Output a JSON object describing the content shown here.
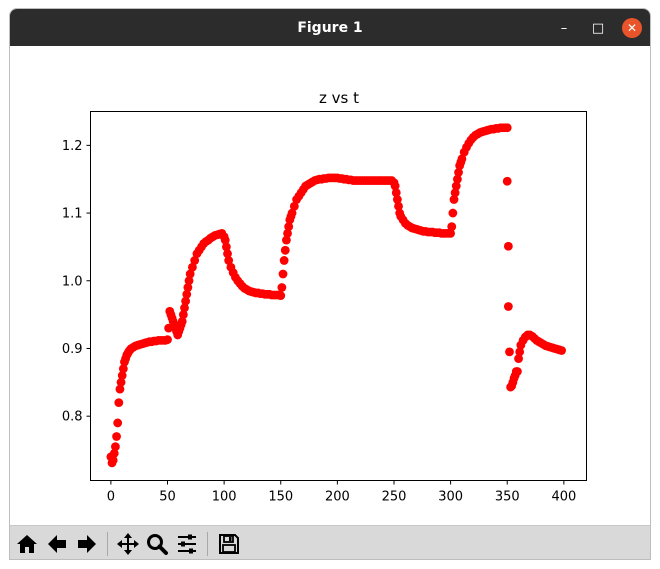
{
  "window": {
    "title": "Figure 1",
    "minimize_glyph": "–",
    "maximize_glyph": "□",
    "close_glyph": "✕",
    "close_color": "#e9542b",
    "titlebar_color": "#2c2c2c"
  },
  "toolbar": {
    "buttons": [
      {
        "name": "home-button",
        "icon": "home-icon"
      },
      {
        "name": "back-button",
        "icon": "arrow-left-icon"
      },
      {
        "name": "forward-button",
        "icon": "arrow-right-icon"
      },
      {
        "name": "pan-button",
        "icon": "move-icon"
      },
      {
        "name": "zoom-button",
        "icon": "magnifier-icon"
      },
      {
        "name": "configure-subplots-button",
        "icon": "sliders-icon"
      },
      {
        "name": "save-button",
        "icon": "floppy-disk-icon"
      }
    ]
  },
  "chart_data": {
    "type": "scatter",
    "title": "z vs t",
    "xlabel": "",
    "ylabel": "",
    "xlim": [
      -18,
      420
    ],
    "ylim": [
      0.705,
      1.25
    ],
    "xticks": [
      0,
      50,
      100,
      150,
      200,
      250,
      300,
      350,
      400
    ],
    "yticks": [
      0.8,
      0.9,
      1.0,
      1.1,
      1.2
    ],
    "ytick_labels": [
      "0.8",
      "0.9",
      "1.0",
      "1.1",
      "1.2"
    ],
    "grid": false,
    "marker_color": "#ff0000",
    "series": [
      {
        "points": [
          [
            0,
            0.74
          ],
          [
            1,
            0.731
          ],
          [
            2,
            0.735
          ],
          [
            3,
            0.745
          ],
          [
            4,
            0.755
          ],
          [
            5,
            0.77
          ],
          [
            6,
            0.79
          ],
          [
            7,
            0.82
          ],
          [
            8,
            0.84
          ],
          [
            9,
            0.85
          ],
          [
            10,
            0.86
          ],
          [
            11,
            0.87
          ],
          [
            12,
            0.88
          ],
          [
            13,
            0.885
          ],
          [
            14,
            0.89
          ],
          [
            15,
            0.893
          ],
          [
            16,
            0.896
          ],
          [
            17,
            0.898
          ],
          [
            18,
            0.9
          ],
          [
            20,
            0.902
          ],
          [
            22,
            0.904
          ],
          [
            24,
            0.905
          ],
          [
            26,
            0.906
          ],
          [
            28,
            0.907
          ],
          [
            30,
            0.908
          ],
          [
            32,
            0.909
          ],
          [
            34,
            0.91
          ],
          [
            36,
            0.91
          ],
          [
            38,
            0.911
          ],
          [
            40,
            0.911
          ],
          [
            42,
            0.912
          ],
          [
            44,
            0.912
          ],
          [
            46,
            0.912
          ],
          [
            48,
            0.912
          ],
          [
            50,
            0.913
          ],
          [
            51,
            0.93
          ],
          [
            52,
            0.955
          ],
          [
            53,
            0.95
          ],
          [
            54,
            0.945
          ],
          [
            55,
            0.94
          ],
          [
            56,
            0.935
          ],
          [
            57,
            0.93
          ],
          [
            58,
            0.925
          ],
          [
            59,
            0.92
          ],
          [
            60,
            0.925
          ],
          [
            61,
            0.93
          ],
          [
            62,
            0.935
          ],
          [
            63,
            0.94
          ],
          [
            64,
            0.95
          ],
          [
            65,
            0.96
          ],
          [
            66,
            0.97
          ],
          [
            67,
            0.98
          ],
          [
            68,
            0.99
          ],
          [
            69,
            1.0
          ],
          [
            70,
            1.01
          ],
          [
            72,
            1.02
          ],
          [
            74,
            1.03
          ],
          [
            76,
            1.04
          ],
          [
            78,
            1.045
          ],
          [
            80,
            1.05
          ],
          [
            82,
            1.055
          ],
          [
            84,
            1.058
          ],
          [
            86,
            1.06
          ],
          [
            88,
            1.063
          ],
          [
            90,
            1.065
          ],
          [
            92,
            1.067
          ],
          [
            94,
            1.068
          ],
          [
            96,
            1.069
          ],
          [
            98,
            1.07
          ],
          [
            100,
            1.065
          ],
          [
            101,
            1.06
          ],
          [
            102,
            1.05
          ],
          [
            103,
            1.04
          ],
          [
            104,
            1.03
          ],
          [
            106,
            1.02
          ],
          [
            108,
            1.012
          ],
          [
            110,
            1.005
          ],
          [
            112,
            1.0
          ],
          [
            114,
            0.996
          ],
          [
            116,
            0.992
          ],
          [
            118,
            0.989
          ],
          [
            120,
            0.987
          ],
          [
            122,
            0.985
          ],
          [
            124,
            0.984
          ],
          [
            126,
            0.983
          ],
          [
            128,
            0.982
          ],
          [
            130,
            0.982
          ],
          [
            132,
            0.981
          ],
          [
            134,
            0.981
          ],
          [
            136,
            0.98
          ],
          [
            138,
            0.98
          ],
          [
            140,
            0.98
          ],
          [
            142,
            0.979
          ],
          [
            144,
            0.979
          ],
          [
            146,
            0.979
          ],
          [
            148,
            0.979
          ],
          [
            150,
            0.978
          ],
          [
            151,
            0.99
          ],
          [
            152,
            1.01
          ],
          [
            153,
            1.03
          ],
          [
            154,
            1.045
          ],
          [
            155,
            1.06
          ],
          [
            156,
            1.07
          ],
          [
            157,
            1.08
          ],
          [
            158,
            1.09
          ],
          [
            159,
            1.095
          ],
          [
            160,
            1.1
          ],
          [
            162,
            1.11
          ],
          [
            164,
            1.12
          ],
          [
            166,
            1.125
          ],
          [
            168,
            1.13
          ],
          [
            170,
            1.135
          ],
          [
            172,
            1.14
          ],
          [
            174,
            1.142
          ],
          [
            176,
            1.144
          ],
          [
            178,
            1.146
          ],
          [
            180,
            1.148
          ],
          [
            182,
            1.149
          ],
          [
            184,
            1.15
          ],
          [
            186,
            1.15
          ],
          [
            188,
            1.151
          ],
          [
            190,
            1.151
          ],
          [
            192,
            1.152
          ],
          [
            194,
            1.152
          ],
          [
            196,
            1.152
          ],
          [
            198,
            1.152
          ],
          [
            200,
            1.152
          ],
          [
            202,
            1.151
          ],
          [
            204,
            1.151
          ],
          [
            206,
            1.15
          ],
          [
            208,
            1.15
          ],
          [
            210,
            1.149
          ],
          [
            212,
            1.149
          ],
          [
            214,
            1.148
          ],
          [
            216,
            1.148
          ],
          [
            218,
            1.148
          ],
          [
            220,
            1.148
          ],
          [
            222,
            1.148
          ],
          [
            224,
            1.148
          ],
          [
            226,
            1.148
          ],
          [
            228,
            1.148
          ],
          [
            230,
            1.148
          ],
          [
            232,
            1.148
          ],
          [
            234,
            1.148
          ],
          [
            236,
            1.148
          ],
          [
            238,
            1.148
          ],
          [
            240,
            1.148
          ],
          [
            242,
            1.148
          ],
          [
            244,
            1.148
          ],
          [
            246,
            1.148
          ],
          [
            248,
            1.148
          ],
          [
            250,
            1.145
          ],
          [
            251,
            1.14
          ],
          [
            252,
            1.13
          ],
          [
            253,
            1.12
          ],
          [
            254,
            1.11
          ],
          [
            255,
            1.1
          ],
          [
            256,
            1.095
          ],
          [
            258,
            1.09
          ],
          [
            260,
            1.085
          ],
          [
            262,
            1.082
          ],
          [
            264,
            1.08
          ],
          [
            266,
            1.078
          ],
          [
            268,
            1.077
          ],
          [
            270,
            1.076
          ],
          [
            272,
            1.075
          ],
          [
            274,
            1.074
          ],
          [
            276,
            1.073
          ],
          [
            278,
            1.073
          ],
          [
            280,
            1.072
          ],
          [
            282,
            1.072
          ],
          [
            284,
            1.072
          ],
          [
            286,
            1.071
          ],
          [
            288,
            1.071
          ],
          [
            290,
            1.071
          ],
          [
            292,
            1.07
          ],
          [
            294,
            1.07
          ],
          [
            296,
            1.07
          ],
          [
            298,
            1.07
          ],
          [
            300,
            1.07
          ],
          [
            301,
            1.08
          ],
          [
            302,
            1.1
          ],
          [
            303,
            1.12
          ],
          [
            304,
            1.13
          ],
          [
            305,
            1.14
          ],
          [
            306,
            1.15
          ],
          [
            307,
            1.16
          ],
          [
            308,
            1.17
          ],
          [
            309,
            1.175
          ],
          [
            310,
            1.18
          ],
          [
            312,
            1.19
          ],
          [
            314,
            1.197
          ],
          [
            316,
            1.203
          ],
          [
            318,
            1.208
          ],
          [
            320,
            1.212
          ],
          [
            322,
            1.215
          ],
          [
            324,
            1.217
          ],
          [
            326,
            1.219
          ],
          [
            328,
            1.22
          ],
          [
            330,
            1.221
          ],
          [
            332,
            1.222
          ],
          [
            334,
            1.223
          ],
          [
            336,
            1.224
          ],
          [
            338,
            1.224
          ],
          [
            340,
            1.225
          ],
          [
            342,
            1.225
          ],
          [
            344,
            1.226
          ],
          [
            346,
            1.226
          ],
          [
            348,
            1.226
          ],
          [
            350,
            1.226
          ],
          [
            350,
            1.147
          ],
          [
            351,
            1.051
          ],
          [
            351,
            0.962
          ],
          [
            352,
            0.895
          ],
          [
            353,
            0.843
          ],
          [
            354,
            0.845
          ],
          [
            355,
            0.85
          ],
          [
            356,
            0.856
          ],
          [
            357,
            0.86
          ],
          [
            358,
            0.866
          ],
          [
            359,
            0.866
          ],
          [
            360,
            0.885
          ],
          [
            361,
            0.895
          ],
          [
            362,
            0.905
          ],
          [
            364,
            0.912
          ],
          [
            366,
            0.917
          ],
          [
            368,
            0.92
          ],
          [
            370,
            0.92
          ],
          [
            372,
            0.918
          ],
          [
            374,
            0.915
          ],
          [
            376,
            0.912
          ],
          [
            378,
            0.91
          ],
          [
            380,
            0.908
          ],
          [
            382,
            0.906
          ],
          [
            384,
            0.904
          ],
          [
            386,
            0.903
          ],
          [
            388,
            0.902
          ],
          [
            390,
            0.901
          ],
          [
            392,
            0.9
          ],
          [
            394,
            0.899
          ],
          [
            396,
            0.898
          ],
          [
            398,
            0.897
          ]
        ]
      }
    ]
  }
}
